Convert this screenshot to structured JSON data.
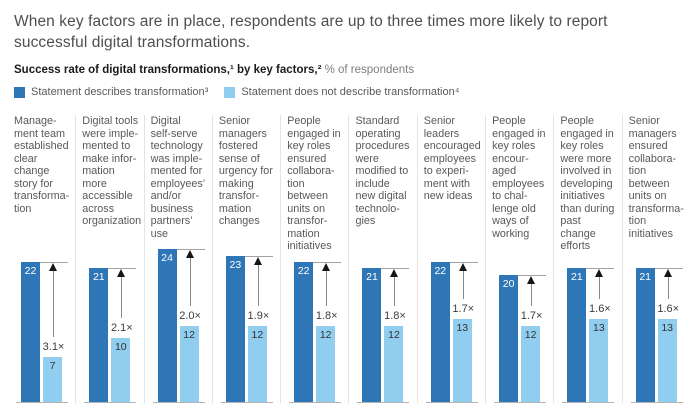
{
  "header": {
    "title": "When key factors are in place, respondents are up to three times more likely to report\nsuccessful digital transformations.",
    "subtitle_bold": "Success rate of digital transformations,¹ by key factors,²",
    "subtitle_regular": " % of respondents"
  },
  "legend": {
    "series1": "Statement describes transformation³",
    "series2": "Statement does not describe transformation⁴"
  },
  "colors": {
    "dark_blue": "#2e76b6",
    "light_blue": "#90cdef",
    "baseline_gray": "#b2b2b2",
    "divider_gray": "#e4e4e4",
    "arrow_gray": "#8a8a8a"
  },
  "columns": [
    {
      "label": "Manage-\nment team\nestablished\nclear\nchange\nstory for\ntransforma-\ntion",
      "dark_value": 22,
      "light_value": 7,
      "multiplier": "3.1×"
    },
    {
      "label": "Digital tools\nwere imple-\nmented to\nmake infor-\nmation\nmore\naccessible\nacross\norganization",
      "dark_value": 21,
      "light_value": 10,
      "multiplier": "2.1×"
    },
    {
      "label": "Digital\nself-serve\ntechnology\nwas imple-\nmented for\nemployees’\nand/or\nbusiness\npartners’\nuse",
      "dark_value": 24,
      "light_value": 12,
      "multiplier": "2.0×"
    },
    {
      "label": "Senior\nmanagers\nfostered\nsense of\nurgency for\nmaking\ntransfor-\nmation\nchanges",
      "dark_value": 23,
      "light_value": 12,
      "multiplier": "1.9×"
    },
    {
      "label": "People\nengaged in\nkey roles\nensured\ncollabora-\ntion\nbetween\nunits on\ntransfor-\nmation\ninitiatives",
      "dark_value": 22,
      "light_value": 12,
      "multiplier": "1.8×"
    },
    {
      "label": "Standard\noperating\nprocedures\nwere\nmodified to\ninclude\nnew digital\ntechnolo-\ngies",
      "dark_value": 21,
      "light_value": 12,
      "multiplier": "1.8×"
    },
    {
      "label": "Senior\nleaders\nencouraged\nemployees\nto experi-\nment with\nnew ideas",
      "dark_value": 22,
      "light_value": 13,
      "multiplier": "1.7×"
    },
    {
      "label": "People\nengaged in\nkey roles\nencour-\naged\nemployees\nto chal-\nlenge old\nways of\nworking",
      "dark_value": 20,
      "light_value": 12,
      "multiplier": "1.7×"
    },
    {
      "label": "People\nengaged in\nkey roles\nwere more\ninvolved in\ndeveloping\ninitiatives\nthan during\npast\nchange\nefforts",
      "dark_value": 21,
      "light_value": 13,
      "multiplier": "1.6×"
    },
    {
      "label": "Senior\nmanagers\nensured\ncollabora-\ntion\nbetween\nunits on\ntransforma-\ntion\ninitiatives",
      "dark_value": 21,
      "light_value": 13,
      "multiplier": "1.6×"
    }
  ],
  "chart_data": {
    "type": "bar",
    "title": "Success rate of digital transformations, by key factors, % of respondents",
    "categories": [
      "Management team established clear change story for transformation",
      "Digital tools were implemented to make information more accessible across organization",
      "Digital self-serve technology was implemented for employees’ and/or business partners’ use",
      "Senior managers fostered sense of urgency for making transformation changes",
      "People engaged in key roles ensured collaboration between units on transformation initiatives",
      "Standard operating procedures were modified to include new digital technologies",
      "Senior leaders encouraged employees to experiment with new ideas",
      "People engaged in key roles encouraged employees to challenge old ways of working",
      "People engaged in key roles were more involved in developing initiatives than during past change efforts",
      "Senior managers ensured collaboration between units on transformation initiatives"
    ],
    "series": [
      {
        "name": "Statement describes transformation",
        "values": [
          22,
          21,
          24,
          23,
          22,
          21,
          22,
          20,
          21,
          21
        ]
      },
      {
        "name": "Statement does not describe transformation",
        "values": [
          7,
          10,
          12,
          12,
          12,
          12,
          13,
          12,
          13,
          13
        ]
      }
    ],
    "multipliers": [
      "3.1×",
      "2.1×",
      "2.0×",
      "1.9×",
      "1.8×",
      "1.8×",
      "1.7×",
      "1.7×",
      "1.6×",
      "1.6×"
    ],
    "ylabel": "% of respondents",
    "ylim": [
      0,
      24
    ],
    "grid": false,
    "legend_position": "top"
  }
}
